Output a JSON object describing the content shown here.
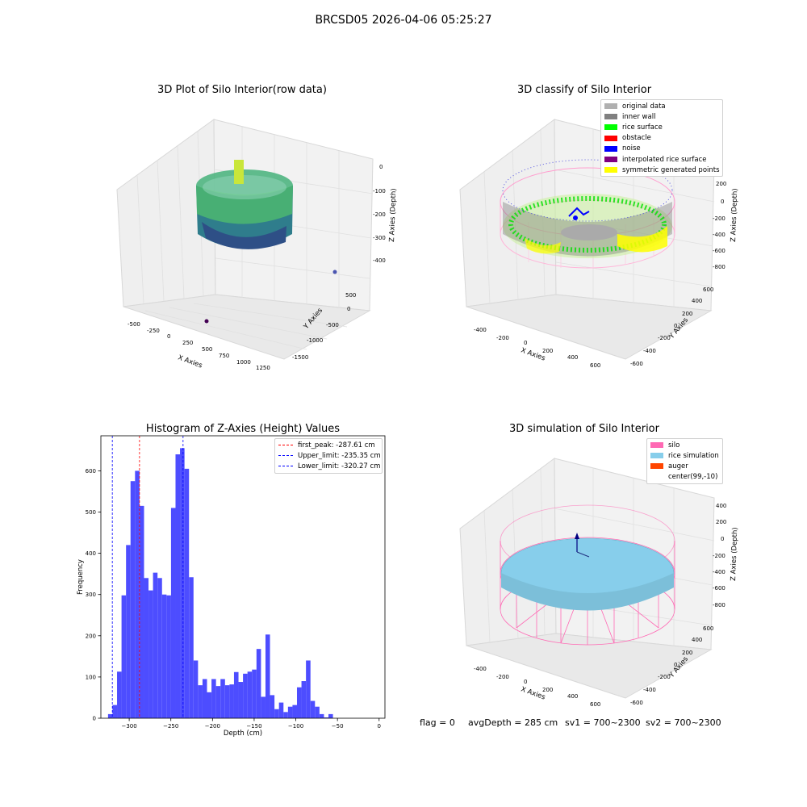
{
  "suptitle": "BRCSD05 2026-04-06 05:25:27",
  "panels": {
    "raw": {
      "title": "3D Plot of Silo Interior(row data)",
      "xlabel": "X Axies",
      "ylabel": "Y Axies",
      "zlabel": "Z Axies (Depth)",
      "xticks": [
        "-500",
        "-250",
        "0",
        "250",
        "500",
        "750",
        "1000",
        "1250"
      ],
      "yticks": [
        "500",
        "0",
        "-500",
        "-1000",
        "-1500"
      ],
      "zticks": [
        "0",
        "-100",
        "-200",
        "-300",
        "-400"
      ]
    },
    "classify": {
      "title": "3D classify of Silo Interior",
      "xlabel": "X Axies",
      "ylabel": "Y Axies",
      "zlabel": "Z Axies (Depth)",
      "xticks": [
        "-400",
        "-200",
        "0",
        "200",
        "400",
        "600"
      ],
      "yticks": [
        "600",
        "400",
        "200",
        "0",
        "-200",
        "-400",
        "-600"
      ],
      "zticks": [
        "200",
        "0",
        "-200",
        "-400",
        "-600",
        "-800"
      ],
      "legend": [
        {
          "label": "original data",
          "color": "#b0b0b0"
        },
        {
          "label": "inner wall",
          "color": "#808080"
        },
        {
          "label": "rice surface",
          "color": "#00ff00"
        },
        {
          "label": "obstacle",
          "color": "#ff0000"
        },
        {
          "label": "noise",
          "color": "#0000ff"
        },
        {
          "label": "interpolated rice surface",
          "color": "#800080"
        },
        {
          "label": "symmetric generated points",
          "color": "#ffff00"
        }
      ]
    },
    "simulation": {
      "title": "3D simulation of Silo Interior",
      "xlabel": "X Axies",
      "ylabel": "Y Axies",
      "zlabel": "Z Axies (Depth)",
      "xticks": [
        "-400",
        "-200",
        "0",
        "200",
        "400",
        "600"
      ],
      "yticks": [
        "600",
        "400",
        "200",
        "0",
        "-200",
        "-400",
        "-600"
      ],
      "zticks": [
        "400",
        "200",
        "0",
        "-200",
        "-400",
        "-600",
        "-800"
      ],
      "legend": [
        {
          "label": "silo",
          "color": "#ff69b4"
        },
        {
          "label": "rice simulation",
          "color": "#87ceeb"
        },
        {
          "label": "auger",
          "color": "#ff4500"
        },
        {
          "label": "center(99,-10)",
          "color": "#ffffff"
        }
      ],
      "footer": {
        "flag": "flag = 0",
        "avg_depth": "avgDepth = 285 cm",
        "sv1": "sv1 = 700~2300",
        "sv2": "sv2 = 700~2300"
      }
    }
  },
  "chart_data": {
    "type": "bar",
    "title": "Histogram of Z-Axies (Height) Values",
    "xlabel": "Depth (cm)",
    "ylabel": "Frequency",
    "xlim": [
      -334,
      7
    ],
    "ylim": [
      0,
      685
    ],
    "bar_color": "#4d4dff",
    "bin_width": 5.4,
    "bin_start": -325.4,
    "values": [
      10,
      32,
      113,
      298,
      420,
      575,
      600,
      515,
      340,
      310,
      353,
      340,
      300,
      298,
      510,
      640,
      655,
      605,
      342,
      140,
      80,
      95,
      63,
      95,
      78,
      95,
      80,
      82,
      112,
      88,
      108,
      113,
      118,
      168,
      52,
      203,
      56,
      22,
      38,
      15,
      28,
      32,
      75,
      90,
      140,
      42,
      28,
      10,
      2,
      10
    ],
    "xticks": [
      -300,
      -250,
      -200,
      -150,
      -100,
      -50,
      0
    ],
    "yticks": [
      0,
      100,
      200,
      300,
      400,
      500,
      600
    ],
    "vlines": [
      {
        "label": "first_peak: -287.61 cm",
        "x": -287.61,
        "color": "#ff0000"
      },
      {
        "label": "Upper_limit: -235.35 cm",
        "x": -235.35,
        "color": "#0000ff"
      },
      {
        "label": "Lower_limit: -320.27 cm",
        "x": -320.27,
        "color": "#0000ff"
      }
    ],
    "legend_position": "upper right"
  }
}
